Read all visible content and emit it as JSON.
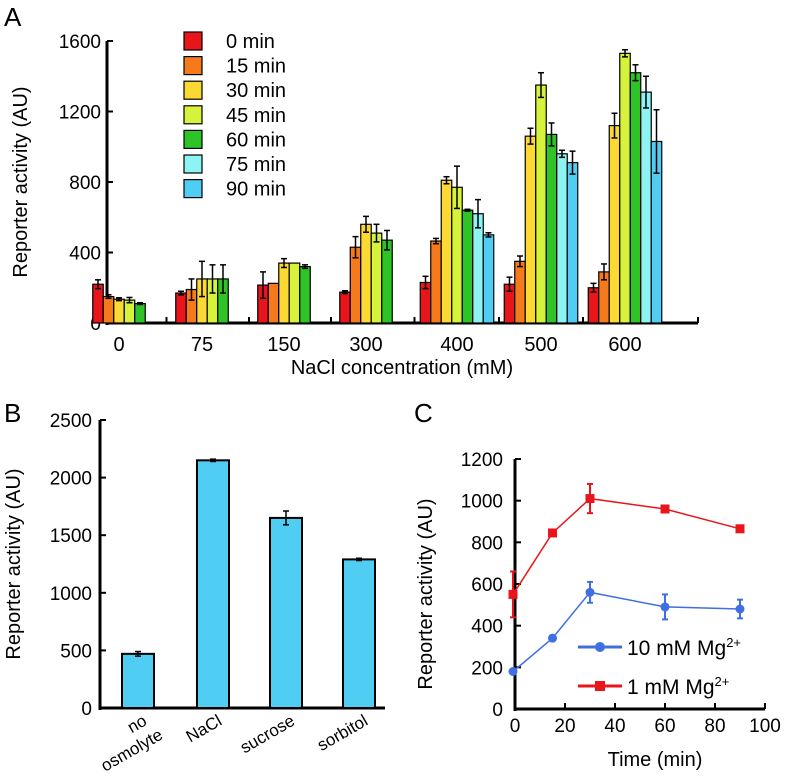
{
  "chart_data": [
    {
      "panel": "A",
      "type": "bar",
      "xlabel": "NaCl concentration (mM)",
      "ylabel": "Reporter activity (AU)",
      "ylim": [
        0,
        1600
      ],
      "yticks": [
        "0",
        "400",
        "800",
        "1200",
        "1600"
      ],
      "categories": [
        "0",
        "75",
        "150",
        "300",
        "400",
        "500",
        "600"
      ],
      "legend_position": "top-left",
      "series": [
        {
          "name": "0 min",
          "color": "#e8161b",
          "values": [
            220,
            170,
            215,
            175,
            230,
            220,
            200
          ],
          "errors": [
            25,
            10,
            75,
            8,
            35,
            40,
            25
          ]
        },
        {
          "name": "15 min",
          "color": "#f57a1c",
          "values": [
            150,
            190,
            225,
            430,
            465,
            350,
            290
          ],
          "errors": [
            10,
            60,
            0,
            60,
            15,
            30,
            45
          ]
        },
        {
          "name": "30 min",
          "color": "#fbd832",
          "values": [
            135,
            250,
            340,
            560,
            810,
            1060,
            1120
          ],
          "errors": [
            8,
            100,
            25,
            45,
            20,
            45,
            70
          ]
        },
        {
          "name": "45 min",
          "color": "#d6f23a",
          "values": [
            130,
            250,
            340,
            510,
            770,
            1350,
            1530
          ],
          "errors": [
            15,
            80,
            0,
            50,
            120,
            70,
            20
          ]
        },
        {
          "name": "60 min",
          "color": "#2ec427",
          "values": [
            110,
            250,
            320,
            470,
            640,
            1070,
            1420
          ],
          "errors": [
            5,
            80,
            10,
            55,
            5,
            65,
            45
          ]
        },
        {
          "name": "75 min",
          "color": "#8ef3f3",
          "values": [
            null,
            null,
            null,
            null,
            620,
            960,
            1310
          ],
          "errors": [
            0,
            0,
            0,
            0,
            80,
            20,
            90
          ]
        },
        {
          "name": "90 min",
          "color": "#4fcdf3",
          "values": [
            null,
            null,
            null,
            null,
            500,
            910,
            1030
          ],
          "errors": [
            0,
            0,
            0,
            0,
            12,
            65,
            180
          ]
        }
      ]
    },
    {
      "panel": "B",
      "type": "bar",
      "xlabel": "",
      "ylabel": "Reporter activity (AU)",
      "ylim": [
        0,
        2500
      ],
      "yticks": [
        "0",
        "500",
        "1000",
        "1500",
        "2000",
        "2500"
      ],
      "categories": [
        [
          "no",
          "osmolyte"
        ],
        [
          "NaCl"
        ],
        [
          "sucrose"
        ],
        [
          "sorbitol"
        ]
      ],
      "color": "#4fcdf3",
      "values": [
        470,
        2150,
        1650,
        1290
      ],
      "errors": [
        20,
        10,
        60,
        10
      ]
    },
    {
      "panel": "C",
      "type": "line",
      "xlabel": "Time (min)",
      "ylabel": "Reporter activity (AU)",
      "xlim": [
        0,
        100
      ],
      "ylim": [
        0,
        1200
      ],
      "xticks": [
        "0",
        "20",
        "40",
        "60",
        "80",
        "100"
      ],
      "yticks": [
        "0",
        "200",
        "400",
        "600",
        "800",
        "1000",
        "1200"
      ],
      "legend_position": "bottom-right",
      "x": [
        0,
        15,
        30,
        60,
        90
      ],
      "series": [
        {
          "name": "10 mM Mg",
          "sup": "2+",
          "color": "#3f6fe0",
          "marker": "circle",
          "values": [
            180,
            340,
            560,
            490,
            480
          ],
          "errors": [
            0,
            0,
            50,
            60,
            45
          ]
        },
        {
          "name": "1 mM Mg",
          "sup": "2+",
          "color": "#e8161b",
          "marker": "square",
          "values": [
            550,
            845,
            1010,
            960,
            865
          ],
          "errors": [
            110,
            0,
            70,
            0,
            0
          ]
        }
      ]
    }
  ]
}
